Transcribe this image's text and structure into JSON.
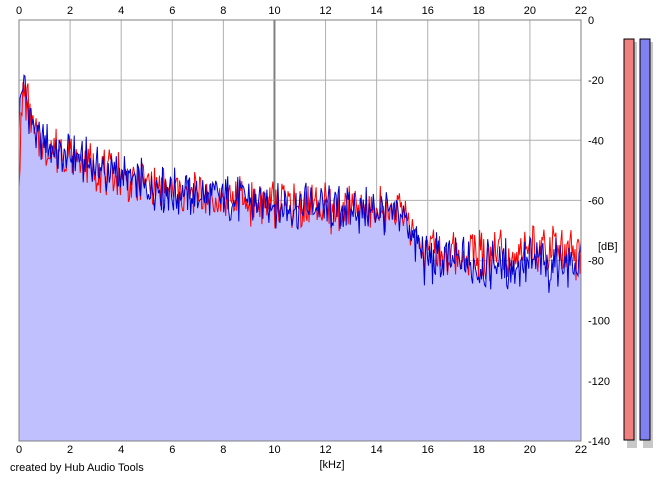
{
  "credit": "created by Hub Audio Tools",
  "chart_data": {
    "type": "area",
    "title": "",
    "xlabel": "[kHz]",
    "ylabel": "[dB]",
    "x_ticks": [
      "0",
      "2",
      "4",
      "6",
      "8",
      "10",
      "12",
      "14",
      "16",
      "18",
      "20",
      "22"
    ],
    "y_ticks": [
      "0",
      "-20",
      "-40",
      "-60",
      "-80",
      "-100",
      "-120",
      "-140"
    ],
    "xlim": [
      0,
      22
    ],
    "ylim": [
      -140,
      0
    ],
    "grid": true,
    "series": [
      {
        "color": "#0000cc",
        "fill": "#c0c0ff",
        "x": [
          0,
          0.15,
          0.3,
          0.5,
          0.7,
          1,
          1.5,
          2,
          2.5,
          3,
          3.5,
          4,
          4.5,
          5,
          5.5,
          6,
          6.5,
          7,
          7.5,
          8,
          8.5,
          9,
          9.5,
          10,
          10.5,
          11,
          11.5,
          12,
          12.5,
          13,
          13.5,
          14,
          14.5,
          15,
          15.2,
          15.5,
          15.8,
          16,
          16.5,
          17,
          17.5,
          18,
          18.5,
          19,
          19.5,
          20,
          20.5,
          21,
          21.5,
          22
        ],
        "values": [
          -30,
          -22,
          -26,
          -33,
          -40,
          -42,
          -44,
          -45,
          -47,
          -49,
          -51,
          -52,
          -54,
          -55,
          -56,
          -57,
          -58,
          -58,
          -59,
          -59,
          -60,
          -60,
          -61,
          -61,
          -62,
          -62,
          -62,
          -63,
          -63,
          -63,
          -64,
          -63,
          -64,
          -64,
          -67,
          -74,
          -78,
          -80,
          -80,
          -81,
          -80,
          -81,
          -80,
          -81,
          -81,
          -80,
          -81,
          -81,
          -81,
          -82
        ]
      },
      {
        "color": "#ff0000",
        "x": [
          0,
          0.15,
          0.3,
          0.5,
          0.7,
          1,
          1.5,
          2,
          2.5,
          3,
          3.5,
          4,
          4.5,
          5,
          5.5,
          6,
          6.5,
          7,
          7.5,
          8,
          8.5,
          9,
          9.5,
          10,
          10.5,
          11,
          11.5,
          12,
          12.5,
          13,
          13.5,
          14,
          14.5,
          15,
          15.2,
          15.5,
          15.8,
          16,
          16.5,
          17,
          17.5,
          18,
          18.5,
          19,
          19.5,
          20,
          20.5,
          21,
          21.5,
          22
        ],
        "values": [
          -50,
          -24,
          -27,
          -34,
          -40,
          -42,
          -44,
          -45,
          -47,
          -49,
          -51,
          -52,
          -54,
          -55,
          -56,
          -57,
          -58,
          -58,
          -59,
          -59,
          -60,
          -60,
          -61,
          -61,
          -62,
          -62,
          -62,
          -63,
          -63,
          -63,
          -64,
          -63,
          -64,
          -64,
          -66,
          -72,
          -75,
          -77,
          -77,
          -78,
          -77,
          -78,
          -77,
          -78,
          -77,
          -76,
          -77,
          -77,
          -78,
          -79
        ]
      }
    ],
    "meters": [
      {
        "color": "#f08080",
        "level_db": -140
      },
      {
        "color": "#8080f0",
        "level_db": -140
      }
    ]
  }
}
